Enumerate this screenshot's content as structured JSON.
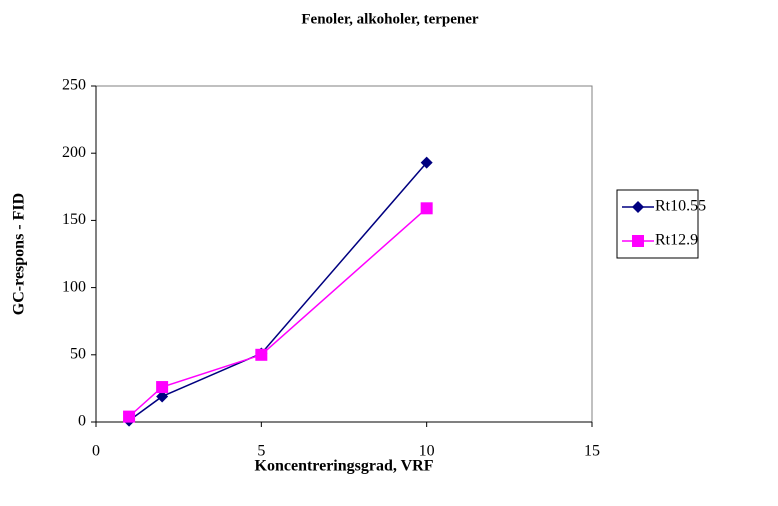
{
  "chart_data": {
    "type": "line",
    "title": "Fenoler, alkoholer, terpener",
    "xlabel": "Koncentreringsgrad, VRF",
    "ylabel": "GC-respons - FID",
    "x": [
      1,
      2,
      5,
      10
    ],
    "series": [
      {
        "name": "Rt10.55",
        "color": "#000080",
        "marker": "diamond",
        "values": [
          1,
          19,
          51,
          193
        ]
      },
      {
        "name": "Rt12.9",
        "color": "#ff00ff",
        "marker": "square",
        "values": [
          4,
          26,
          50,
          159
        ]
      }
    ],
    "xlim": [
      0,
      15
    ],
    "xticks": [
      0,
      5,
      10,
      15
    ],
    "ylim": [
      0,
      250
    ],
    "yticks": [
      0,
      50,
      100,
      150,
      200,
      250
    ],
    "grid": false,
    "legend": "right"
  }
}
